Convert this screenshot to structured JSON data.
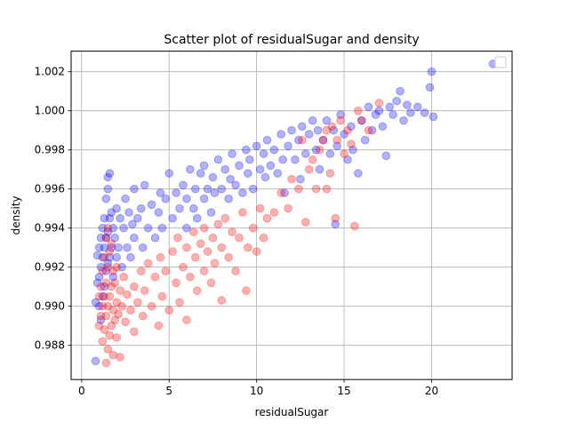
{
  "chart_data": {
    "type": "scatter",
    "title": "Scatter plot of residualSugar and density",
    "xlabel": "residualSugar",
    "ylabel": "density",
    "xlim": [
      -0.6,
      24.6
    ],
    "ylim": [
      0.98625,
      1.00305
    ],
    "xticks": [
      0,
      5,
      10,
      15,
      20
    ],
    "xtick_labels": [
      "0",
      "5",
      "10",
      "15",
      "20"
    ],
    "yticks": [
      0.988,
      0.99,
      0.992,
      0.994,
      0.996,
      0.998,
      1.0,
      1.002
    ],
    "ytick_labels": [
      "0.988",
      "0.990",
      "0.992",
      "0.994",
      "0.996",
      "0.998",
      "1.000",
      "1.002"
    ],
    "grid": true,
    "legend": "top-right",
    "legend_entries": [],
    "marker_alpha": 0.3,
    "series": [
      {
        "color": "#0000ff",
        "points": [
          [
            0.8,
            0.9872
          ],
          [
            0.8,
            0.9902
          ],
          [
            0.9,
            0.9912
          ],
          [
            0.9,
            0.9926
          ],
          [
            1.0,
            0.99
          ],
          [
            1.0,
            0.9915
          ],
          [
            1.0,
            0.993
          ],
          [
            1.1,
            0.9893
          ],
          [
            1.1,
            0.992
          ],
          [
            1.1,
            0.9935
          ],
          [
            1.2,
            0.9905
          ],
          [
            1.2,
            0.9925
          ],
          [
            1.2,
            0.994
          ],
          [
            1.3,
            0.991
          ],
          [
            1.3,
            0.993
          ],
          [
            1.3,
            0.9945
          ],
          [
            1.4,
            0.9918
          ],
          [
            1.4,
            0.9935
          ],
          [
            1.4,
            0.9955
          ],
          [
            1.5,
            0.9922
          ],
          [
            1.5,
            0.9938
          ],
          [
            1.5,
            0.996
          ],
          [
            1.5,
            0.9966
          ],
          [
            1.6,
            0.9925
          ],
          [
            1.6,
            0.9945
          ],
          [
            1.6,
            0.9968
          ],
          [
            1.7,
            0.993
          ],
          [
            1.7,
            0.9948
          ],
          [
            1.8,
            0.9915
          ],
          [
            1.8,
            0.994
          ],
          [
            1.9,
            0.9935
          ],
          [
            2.0,
            0.9925
          ],
          [
            2.0,
            0.995
          ],
          [
            2.1,
            0.993
          ],
          [
            2.2,
            0.9945
          ],
          [
            2.3,
            0.992
          ],
          [
            2.4,
            0.994
          ],
          [
            2.5,
            0.9955
          ],
          [
            2.6,
            0.993
          ],
          [
            2.7,
            0.9948
          ],
          [
            2.8,
            0.9925
          ],
          [
            2.9,
            0.9942
          ],
          [
            3.0,
            0.9935
          ],
          [
            3.0,
            0.996
          ],
          [
            3.2,
            0.9945
          ],
          [
            3.4,
            0.995
          ],
          [
            3.5,
            0.993
          ],
          [
            3.6,
            0.9962
          ],
          [
            3.8,
            0.994
          ],
          [
            4.0,
            0.9952
          ],
          [
            4.2,
            0.9935
          ],
          [
            4.4,
            0.9948
          ],
          [
            4.5,
            0.9958
          ],
          [
            4.6,
            0.994
          ],
          [
            4.8,
            0.9955
          ],
          [
            5.0,
            0.9968
          ],
          [
            5.2,
            0.9945
          ],
          [
            5.4,
            0.9958
          ],
          [
            5.6,
            0.995
          ],
          [
            5.8,
            0.9962
          ],
          [
            6.0,
            0.994
          ],
          [
            6.0,
            0.9955
          ],
          [
            6.2,
            0.997
          ],
          [
            6.4,
            0.995
          ],
          [
            6.5,
            0.996
          ],
          [
            6.6,
            0.9945
          ],
          [
            6.8,
            0.9968
          ],
          [
            7.0,
            0.9955
          ],
          [
            7.0,
            0.9972
          ],
          [
            7.2,
            0.996
          ],
          [
            7.4,
            0.9948
          ],
          [
            7.5,
            0.9966
          ],
          [
            7.6,
            0.9958
          ],
          [
            7.8,
            0.9975
          ],
          [
            8.0,
            0.996
          ],
          [
            8.2,
            0.997
          ],
          [
            8.4,
            0.9955
          ],
          [
            8.5,
            0.9965
          ],
          [
            8.6,
            0.9978
          ],
          [
            8.8,
            0.9962
          ],
          [
            9.0,
            0.9972
          ],
          [
            9.2,
            0.9958
          ],
          [
            9.4,
            0.998
          ],
          [
            9.5,
            0.9968
          ],
          [
            9.6,
            0.9975
          ],
          [
            9.8,
            0.996
          ],
          [
            10.0,
            0.9982
          ],
          [
            10.2,
            0.997
          ],
          [
            10.4,
            0.9978
          ],
          [
            10.5,
            0.9966
          ],
          [
            10.6,
            0.9985
          ],
          [
            10.8,
            0.9972
          ],
          [
            11.0,
            0.998
          ],
          [
            11.2,
            0.9968
          ],
          [
            11.4,
            0.9988
          ],
          [
            11.5,
            0.9975
          ],
          [
            11.6,
            0.9958
          ],
          [
            11.8,
            0.9982
          ],
          [
            12.0,
            0.999
          ],
          [
            12.2,
            0.9975
          ],
          [
            12.4,
            0.9985
          ],
          [
            12.5,
            0.9965
          ],
          [
            12.6,
            0.9992
          ],
          [
            12.8,
            0.9978
          ],
          [
            13.0,
            0.9988
          ],
          [
            13.2,
            0.9995
          ],
          [
            13.4,
            0.998
          ],
          [
            13.5,
            0.999
          ],
          [
            13.6,
            0.997
          ],
          [
            13.8,
            0.9985
          ],
          [
            14.0,
            0.9995
          ],
          [
            14.2,
            0.9978
          ],
          [
            14.4,
            0.999
          ],
          [
            14.5,
            0.9942
          ],
          [
            14.6,
            0.9982
          ],
          [
            14.8,
            0.9998
          ],
          [
            15.0,
            0.9988
          ],
          [
            15.2,
            0.9975
          ],
          [
            15.4,
            0.9992
          ],
          [
            15.5,
            0.998
          ],
          [
            15.8,
            0.9968
          ],
          [
            16.0,
            0.9995
          ],
          [
            16.2,
            0.9985
          ],
          [
            16.4,
            1.0002
          ],
          [
            16.6,
            0.999
          ],
          [
            16.8,
            0.9998
          ],
          [
            17.0,
            1.0
          ],
          [
            17.2,
            0.9992
          ],
          [
            17.4,
            0.9977
          ],
          [
            17.6,
            1.0002
          ],
          [
            17.8,
            0.9998
          ],
          [
            18.0,
            1.0005
          ],
          [
            18.2,
            1.001
          ],
          [
            18.4,
            0.9995
          ],
          [
            18.6,
            1.0003
          ],
          [
            18.8,
            0.9999
          ],
          [
            19.2,
            1.0002
          ],
          [
            19.6,
            0.9999
          ],
          [
            19.9,
            1.0012
          ],
          [
            20.0,
            1.002
          ],
          [
            20.1,
            0.9997
          ],
          [
            23.5,
            1.0024
          ]
        ]
      },
      {
        "color": "#ff0000",
        "points": [
          [
            1.0,
            0.989
          ],
          [
            1.0,
            0.9905
          ],
          [
            1.1,
            0.9895
          ],
          [
            1.1,
            0.991
          ],
          [
            1.2,
            0.9882
          ],
          [
            1.2,
            0.99
          ],
          [
            1.2,
            0.9918
          ],
          [
            1.3,
            0.9888
          ],
          [
            1.3,
            0.9905
          ],
          [
            1.3,
            0.9925
          ],
          [
            1.4,
            0.9871
          ],
          [
            1.4,
            0.9895
          ],
          [
            1.4,
            0.9912
          ],
          [
            1.4,
            0.9935
          ],
          [
            1.5,
            0.9878
          ],
          [
            1.5,
            0.99
          ],
          [
            1.5,
            0.992
          ],
          [
            1.5,
            0.994
          ],
          [
            1.6,
            0.9885
          ],
          [
            1.6,
            0.9905
          ],
          [
            1.6,
            0.9928
          ],
          [
            1.7,
            0.989
          ],
          [
            1.7,
            0.991
          ],
          [
            1.7,
            0.9932
          ],
          [
            1.8,
            0.9875
          ],
          [
            1.8,
            0.9898
          ],
          [
            1.8,
            0.9918
          ],
          [
            1.9,
            0.9893
          ],
          [
            1.9,
            0.9912
          ],
          [
            2.0,
            0.9884
          ],
          [
            2.0,
            0.9902
          ],
          [
            2.0,
            0.992
          ],
          [
            2.1,
            0.9896
          ],
          [
            2.2,
            0.9874
          ],
          [
            2.2,
            0.9908
          ],
          [
            2.3,
            0.99
          ],
          [
            2.4,
            0.9915
          ],
          [
            2.5,
            0.9892
          ],
          [
            2.6,
            0.9906
          ],
          [
            2.8,
            0.9898
          ],
          [
            3.0,
            0.991
          ],
          [
            3.0,
            0.9887
          ],
          [
            3.2,
            0.9902
          ],
          [
            3.4,
            0.9918
          ],
          [
            3.5,
            0.9895
          ],
          [
            3.6,
            0.9908
          ],
          [
            3.8,
            0.9922
          ],
          [
            4.0,
            0.99
          ],
          [
            4.2,
            0.9915
          ],
          [
            4.4,
            0.989
          ],
          [
            4.5,
            0.9925
          ],
          [
            4.6,
            0.9905
          ],
          [
            4.8,
            0.9918
          ],
          [
            5.0,
            0.9898
          ],
          [
            5.2,
            0.9928
          ],
          [
            5.4,
            0.9912
          ],
          [
            5.5,
            0.9935
          ],
          [
            5.6,
            0.9902
          ],
          [
            5.8,
            0.992
          ],
          [
            6.0,
            0.993
          ],
          [
            6.0,
            0.9893
          ],
          [
            6.2,
            0.9915
          ],
          [
            6.4,
            0.9938
          ],
          [
            6.5,
            0.9925
          ],
          [
            6.6,
            0.9908
          ],
          [
            6.8,
            0.9932
          ],
          [
            7.0,
            0.9918
          ],
          [
            7.0,
            0.994
          ],
          [
            7.2,
            0.9928
          ],
          [
            7.4,
            0.9912
          ],
          [
            7.5,
            0.9935
          ],
          [
            7.6,
            0.9922
          ],
          [
            7.8,
            0.9942
          ],
          [
            8.0,
            0.993
          ],
          [
            8.0,
            0.9903
          ],
          [
            8.2,
            0.9945
          ],
          [
            8.4,
            0.9925
          ],
          [
            8.6,
            0.9938
          ],
          [
            8.8,
            0.9918
          ],
          [
            9.0,
            0.9935
          ],
          [
            9.2,
            0.9948
          ],
          [
            9.4,
            0.9908
          ],
          [
            9.5,
            0.993
          ],
          [
            9.8,
            0.994
          ],
          [
            10.0,
            0.9928
          ],
          [
            10.2,
            0.995
          ],
          [
            10.4,
            0.9935
          ],
          [
            10.6,
            0.9945
          ],
          [
            11.0,
            0.9948
          ],
          [
            11.4,
            0.9958
          ],
          [
            11.8,
            0.995
          ],
          [
            12.0,
            0.9965
          ],
          [
            12.4,
            0.996
          ],
          [
            12.6,
            0.9985
          ],
          [
            12.8,
            0.9943
          ],
          [
            13.0,
            0.997
          ],
          [
            13.2,
            0.9975
          ],
          [
            13.4,
            0.996
          ],
          [
            13.6,
            0.998
          ],
          [
            13.8,
            0.9985
          ],
          [
            14.0,
            0.999
          ],
          [
            14.0,
            0.996
          ],
          [
            14.2,
            0.9968
          ],
          [
            14.3,
            0.9992
          ],
          [
            14.5,
            0.9945
          ],
          [
            14.6,
            0.9985
          ],
          [
            14.8,
            0.9995
          ],
          [
            15.0,
            0.9978
          ],
          [
            15.2,
            0.999
          ],
          [
            15.4,
            0.9983
          ],
          [
            15.6,
            0.9941
          ],
          [
            15.8,
            1.0
          ],
          [
            16.0,
            0.9995
          ],
          [
            16.4,
            0.999
          ],
          [
            17.0,
            1.0004
          ]
        ]
      }
    ]
  }
}
